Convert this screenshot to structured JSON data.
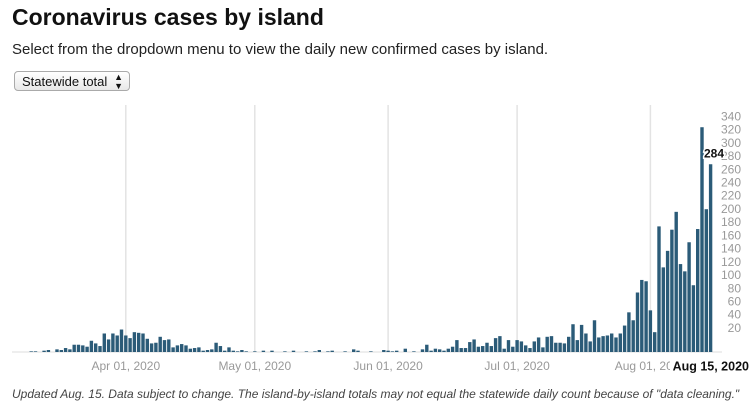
{
  "chart_data": {
    "type": "bar",
    "title": "Coronavirus cases by island",
    "subtitle": "Select from the dropdown menu to view the daily new confirmed cases by island.",
    "dropdown_selection": "Statewide total",
    "note": "Updated Aug. 15. Data subject to change. The island-by-island totals may not equal the statewide daily count because of \"data cleaning.\"",
    "color": "#2b5b78",
    "grid": true,
    "highlight_index": 162,
    "ylim": [
      0,
      360
    ],
    "yticks": [
      20,
      40,
      60,
      80,
      100,
      120,
      140,
      160,
      180,
      200,
      220,
      240,
      260,
      280,
      300,
      320,
      340
    ],
    "categories": [
      null,
      null,
      null,
      null,
      null,
      null,
      null,
      null,
      null,
      null,
      null,
      null,
      null,
      null,
      null,
      null,
      null,
      null,
      null,
      null,
      null,
      null,
      null,
      null,
      null,
      null,
      "Apr 01, 2020",
      null,
      null,
      null,
      null,
      null,
      null,
      null,
      null,
      null,
      null,
      null,
      null,
      null,
      null,
      null,
      null,
      null,
      null,
      null,
      null,
      null,
      null,
      null,
      null,
      null,
      null,
      null,
      null,
      null,
      "May 01, 2020",
      null,
      null,
      null,
      null,
      null,
      null,
      null,
      null,
      null,
      null,
      null,
      null,
      null,
      null,
      null,
      null,
      null,
      null,
      null,
      null,
      null,
      null,
      null,
      null,
      null,
      null,
      null,
      null,
      null,
      null,
      "Jun 01, 2020",
      null,
      null,
      null,
      null,
      null,
      null,
      null,
      null,
      null,
      null,
      null,
      null,
      null,
      null,
      null,
      null,
      null,
      null,
      null,
      null,
      null,
      null,
      null,
      null,
      null,
      null,
      null,
      null,
      null,
      "Jul 01, 2020",
      null,
      null,
      null,
      null,
      null,
      null,
      null,
      null,
      null,
      null,
      null,
      null,
      null,
      null,
      null,
      null,
      null,
      null,
      null,
      null,
      null,
      null,
      null,
      null,
      null,
      null,
      null,
      null,
      null,
      null,
      "Aug 01, 2020",
      null,
      null,
      null,
      null,
      null,
      null,
      null,
      null,
      null,
      null,
      null,
      null,
      null,
      "Aug 15, 2020"
    ],
    "values": [
      0,
      0,
      0,
      0,
      1,
      1,
      0,
      2,
      3,
      0,
      4,
      3,
      6,
      4,
      11,
      11,
      10,
      8,
      17,
      13,
      9,
      28,
      19,
      28,
      25,
      34,
      25,
      21,
      30,
      29,
      28,
      20,
      13,
      14,
      23,
      18,
      19,
      7,
      10,
      12,
      10,
      5,
      6,
      7,
      2,
      3,
      4,
      14,
      9,
      2,
      7,
      2,
      1,
      3,
      1,
      0,
      1,
      0,
      2,
      0,
      2,
      0,
      0,
      1,
      0,
      2,
      0,
      0,
      1,
      0,
      1,
      3,
      0,
      1,
      2,
      0,
      0,
      1,
      0,
      4,
      2,
      0,
      0,
      1,
      0,
      0,
      3,
      2,
      1,
      2,
      0,
      5,
      0,
      1,
      0,
      4,
      11,
      2,
      5,
      4,
      2,
      5,
      8,
      18,
      6,
      6,
      15,
      19,
      8,
      9,
      14,
      9,
      21,
      24,
      5,
      18,
      8,
      18,
      16,
      10,
      6,
      16,
      22,
      7,
      23,
      24,
      14,
      14,
      13,
      23,
      42,
      18,
      41,
      28,
      16,
      48,
      22,
      24,
      25,
      28,
      22,
      28,
      40,
      60,
      48,
      90,
      109,
      107,
      63,
      30,
      190,
      128,
      153,
      185,
      212,
      133,
      122,
      166,
      101,
      186,
      340,
      216,
      284
    ]
  }
}
